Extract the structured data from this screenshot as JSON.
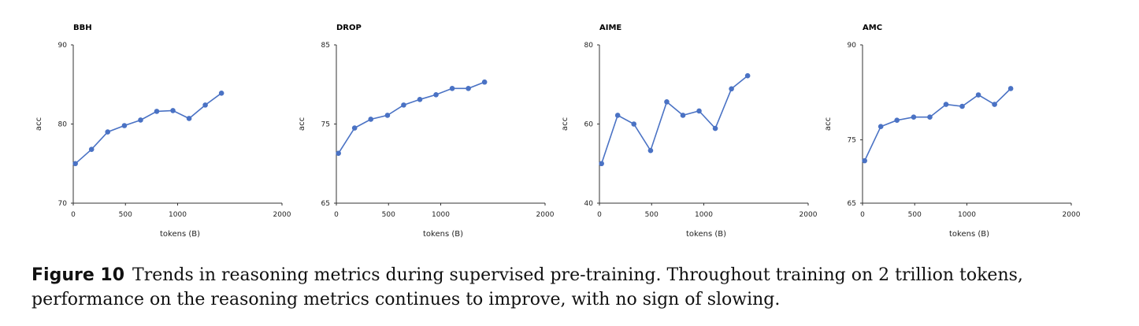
{
  "caption": {
    "label": "Figure 10",
    "text": "Trends in reasoning metrics during supervised pre-training. Throughout training on 2 trillion tokens, performance on the reasoning metrics continues to improve, with no sign of slowing."
  },
  "chart_data": [
    {
      "type": "line",
      "title": "BBH",
      "xlabel": "tokens (B)",
      "ylabel": "acc",
      "xlim": [
        0,
        2000
      ],
      "ylim": [
        70,
        90
      ],
      "xticks": [
        0,
        500,
        1000,
        2000
      ],
      "yticks": [
        70,
        80,
        90
      ],
      "color": "#4a72c4",
      "x": [
        20,
        175,
        330,
        490,
        645,
        800,
        955,
        1110,
        1265,
        1420
      ],
      "y": [
        75.0,
        76.8,
        79.0,
        79.8,
        80.5,
        81.6,
        81.7,
        80.7,
        82.4,
        83.9
      ]
    },
    {
      "type": "line",
      "title": "DROP",
      "xlabel": "tokens (B)",
      "ylabel": "acc",
      "xlim": [
        0,
        2000
      ],
      "ylim": [
        65,
        85
      ],
      "xticks": [
        0,
        500,
        1000,
        2000
      ],
      "yticks": [
        65,
        75,
        85
      ],
      "color": "#4a72c4",
      "x": [
        20,
        175,
        330,
        490,
        645,
        800,
        955,
        1110,
        1265,
        1420
      ],
      "y": [
        71.3,
        74.5,
        75.6,
        76.1,
        77.4,
        78.1,
        78.7,
        79.5,
        79.5,
        80.3
      ]
    },
    {
      "type": "line",
      "title": "AIME",
      "xlabel": "tokens (B)",
      "ylabel": "acc",
      "xlim": [
        0,
        2000
      ],
      "ylim": [
        40,
        80
      ],
      "xticks": [
        0,
        500,
        1000,
        2000
      ],
      "yticks": [
        40,
        60,
        80
      ],
      "color": "#4a72c4",
      "x": [
        20,
        175,
        330,
        490,
        645,
        800,
        955,
        1110,
        1265,
        1420
      ],
      "y": [
        50.0,
        62.2,
        60.0,
        53.3,
        65.6,
        62.2,
        63.3,
        58.9,
        68.9,
        72.2
      ]
    },
    {
      "type": "line",
      "title": "AMC",
      "xlabel": "tokens (B)",
      "ylabel": "acc",
      "xlim": [
        0,
        2000
      ],
      "ylim": [
        65,
        90
      ],
      "xticks": [
        0,
        500,
        1000,
        2000
      ],
      "yticks": [
        65,
        75,
        90
      ],
      "color": "#4a72c4",
      "x": [
        20,
        175,
        330,
        490,
        645,
        800,
        955,
        1110,
        1265,
        1420
      ],
      "y": [
        71.7,
        77.1,
        78.1,
        78.6,
        78.6,
        80.6,
        80.3,
        82.1,
        80.6,
        83.1
      ]
    }
  ]
}
